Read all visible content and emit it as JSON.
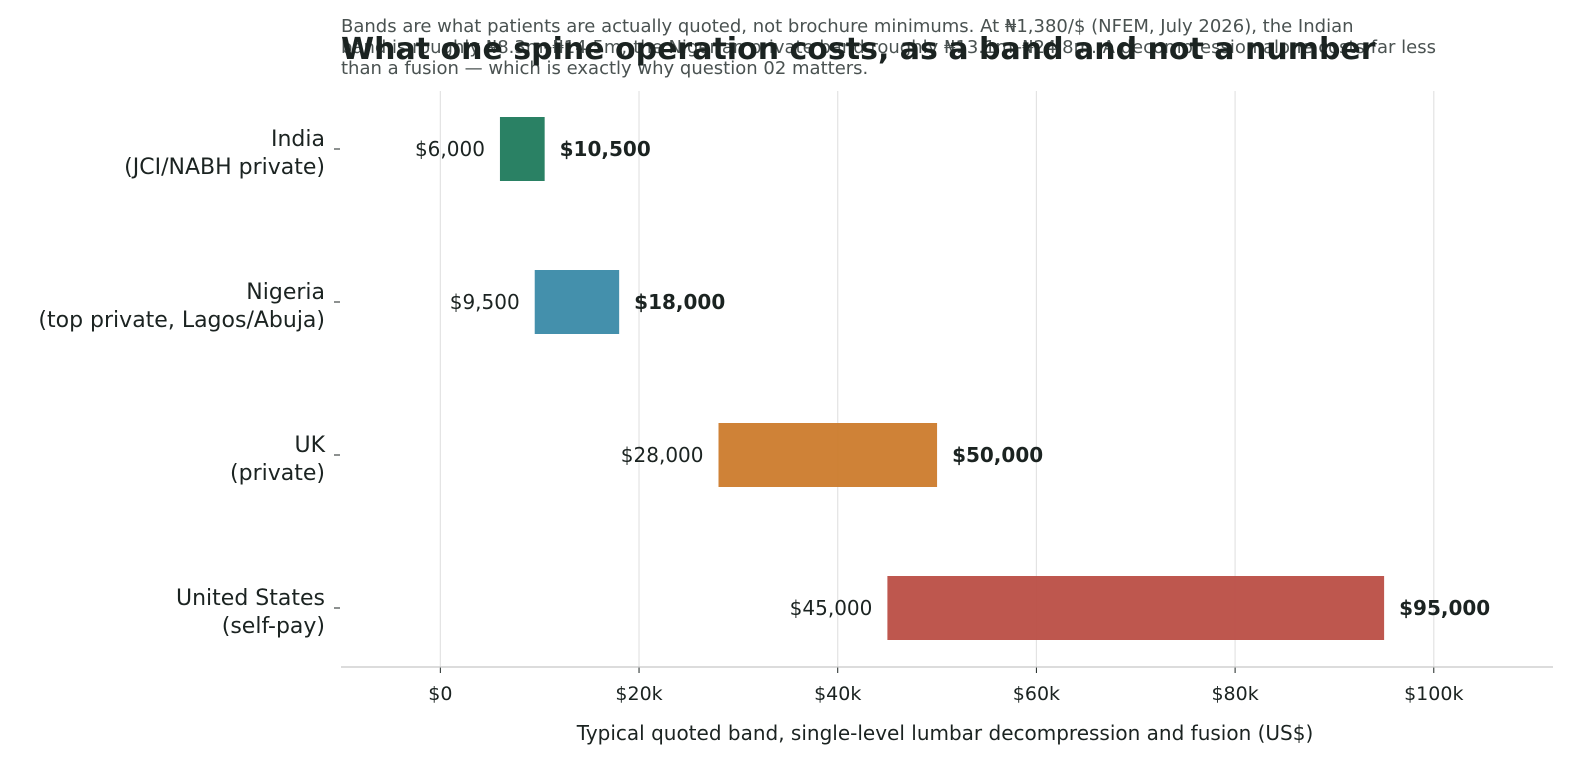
{
  "chart_data": {
    "type": "bar",
    "orientation": "horizontal",
    "subtitle": "Bands are what patients are actually quoted, not brochure minimums. At ₦1,380/$ (NFEM, July 2026), the Indian band is roughly ₦8.3m–₦14.5m; the Nigerian private band roughly ₦13.1m–₦24.8m. A decompression alone costs far less than a fusion — which is exactly why question 02 matters.",
    "subtitle_lines": [
      "Bands are what patients are actually quoted, not brochure minimums. At ₦1,380/$ (NFEM, July 2026), the Indian",
      "band is roughly ₦8.3m–₦14.5m; the Nigerian private band roughly ₦13.1m–₦24.8m. A decompression alone costs far less",
      "than a fusion — which is exactly why question 02 matters."
    ],
    "title": "What one spine operation costs, as a band and not a number",
    "xlabel": "Typical quoted band, single-level lumbar decompression and fusion (US$)",
    "xlim": [
      -10000,
      112000
    ],
    "x_ticks": [
      0,
      20000,
      40000,
      60000,
      80000,
      100000
    ],
    "x_tick_labels": [
      "$0",
      "$20k",
      "$40k",
      "$60k",
      "$80k",
      "$100k"
    ],
    "grid": "vertical",
    "series": [
      {
        "category_lines": [
          "India",
          "(JCI/NABH private)"
        ],
        "low": 6000,
        "high": 10500,
        "low_label": "$6,000",
        "high_label": "$10,500",
        "color": "#1f7a5c"
      },
      {
        "category_lines": [
          "Nigeria",
          "(top private, Lagos/Abuja)"
        ],
        "low": 9500,
        "high": 18000,
        "low_label": "$9,500",
        "high_label": "$18,000",
        "color": "#3a8aa8"
      },
      {
        "category_lines": [
          "UK",
          "(private)"
        ],
        "low": 28000,
        "high": 50000,
        "low_label": "$28,000",
        "high_label": "$50,000",
        "color": "#cc7b2c"
      },
      {
        "category_lines": [
          "United States",
          "(self-pay)"
        ],
        "low": 45000,
        "high": 95000,
        "low_label": "$45,000",
        "high_label": "$95,000",
        "color": "#ba4e45"
      }
    ]
  }
}
